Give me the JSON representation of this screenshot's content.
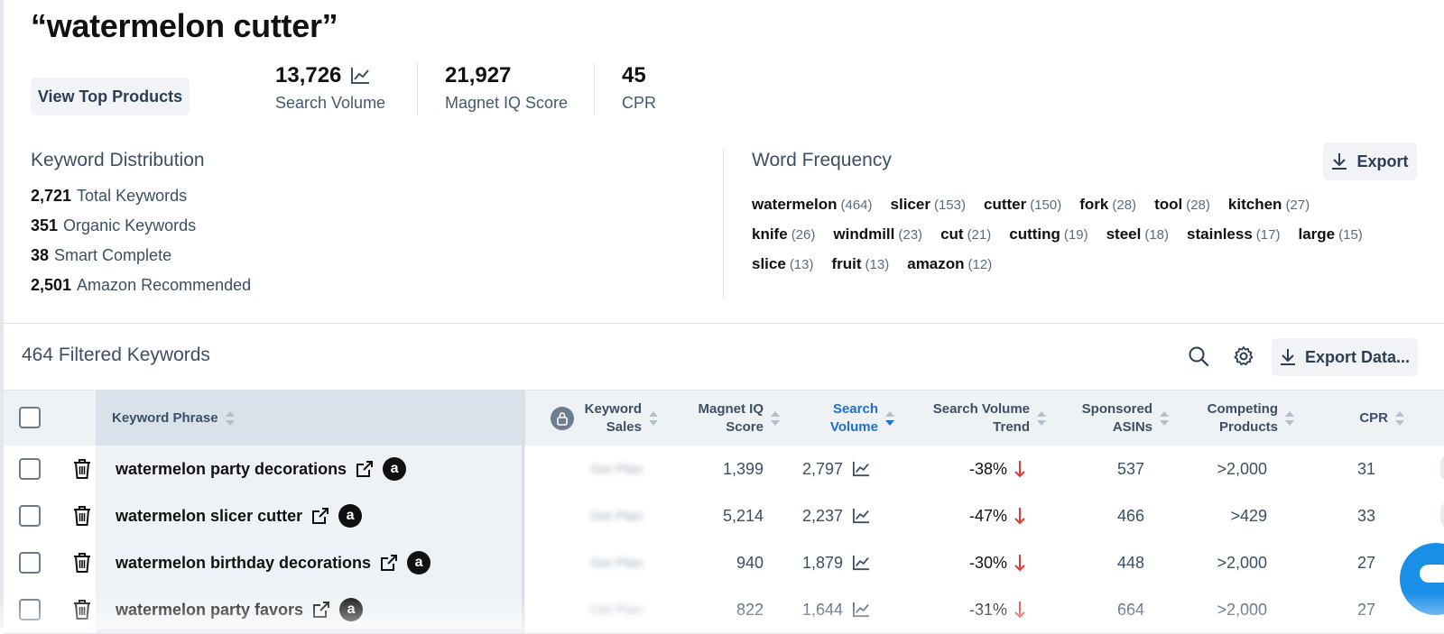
{
  "title": "“watermelon cutter”",
  "top_button": "View Top Products",
  "stats": [
    {
      "value": "13,726",
      "label": "Search Volume"
    },
    {
      "value": "21,927",
      "label": "Magnet IQ Score"
    },
    {
      "value": "45",
      "label": "CPR"
    }
  ],
  "keyword_distribution": {
    "title": "Keyword Distribution",
    "items": [
      {
        "count": "2,721",
        "label": "Total Keywords"
      },
      {
        "count": "351",
        "label": "Organic Keywords"
      },
      {
        "count": "38",
        "label": "Smart Complete"
      },
      {
        "count": "2,501",
        "label": "Amazon Recommended"
      }
    ]
  },
  "word_frequency": {
    "title": "Word Frequency",
    "export_label": "Export",
    "lines": [
      [
        {
          "word": "watermelon",
          "count": "(464)"
        },
        {
          "word": "slicer",
          "count": "(153)"
        },
        {
          "word": "cutter",
          "count": "(150)"
        },
        {
          "word": "fork",
          "count": "(28)"
        },
        {
          "word": "tool",
          "count": "(28)"
        },
        {
          "word": "kitchen",
          "count": "(27)"
        }
      ],
      [
        {
          "word": "knife",
          "count": "(26)"
        },
        {
          "word": "windmill",
          "count": "(23)"
        },
        {
          "word": "cut",
          "count": "(21)"
        },
        {
          "word": "cutting",
          "count": "(19)"
        },
        {
          "word": "steel",
          "count": "(18)"
        },
        {
          "word": "stainless",
          "count": "(17)"
        },
        {
          "word": "large",
          "count": "(15)"
        }
      ],
      [
        {
          "word": "slice",
          "count": "(13)"
        },
        {
          "word": "fruit",
          "count": "(13)"
        },
        {
          "word": "amazon",
          "count": "(12)"
        }
      ]
    ]
  },
  "filtered": {
    "title": "464 Filtered Keywords",
    "export_data_label": "Export Data..."
  },
  "table": {
    "headers": {
      "phrase": "Keyword Phrase",
      "sales": [
        "Keyword",
        "Sales"
      ],
      "miq": [
        "Magnet IQ",
        "Score"
      ],
      "sv": [
        "Search",
        "Volume"
      ],
      "trend": [
        "Search Volume",
        "Trend"
      ],
      "sponsored": [
        "Sponsored",
        "ASINs"
      ],
      "competing": [
        "Competing",
        "Products"
      ],
      "cpr": "CPR"
    },
    "rows": [
      {
        "phrase": "watermelon party decorations",
        "sales": "Get Plan",
        "miq": "1,399",
        "sv": "2,797",
        "trend": "-38%",
        "sponsored": "537",
        "competing": ">2,000",
        "cpr": "31"
      },
      {
        "phrase": "watermelon slicer cutter",
        "sales": "Get Plan",
        "miq": "5,214",
        "sv": "2,237",
        "trend": "-47%",
        "sponsored": "466",
        "competing": ">429",
        "cpr": "33"
      },
      {
        "phrase": "watermelon birthday decorations",
        "sales": "Get Plan",
        "miq": "940",
        "sv": "1,879",
        "trend": "-30%",
        "sponsored": "448",
        "competing": ">2,000",
        "cpr": "27"
      },
      {
        "phrase": "watermelon party favors",
        "sales": "Get Plan",
        "miq": "822",
        "sv": "1,644",
        "trend": "-31%",
        "sponsored": "664",
        "competing": ">2,000",
        "cpr": "27"
      }
    ]
  },
  "colors": {
    "accent": "#1f6fd1",
    "trend_down": "#e53935",
    "chat": "#1a8fe8"
  }
}
